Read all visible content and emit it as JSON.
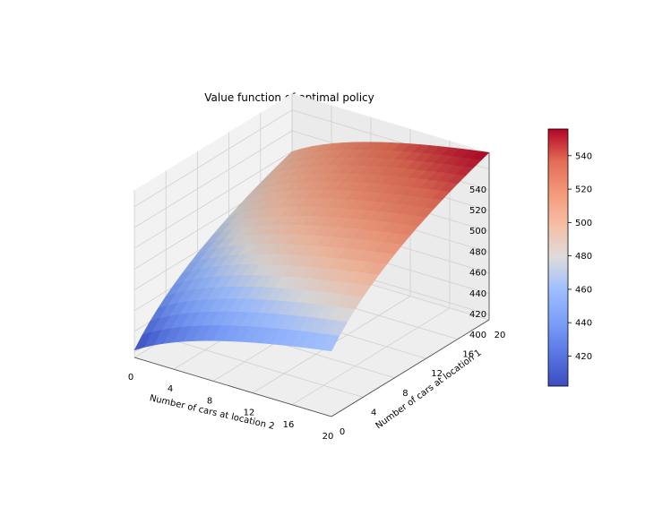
{
  "chart_data": {
    "type": "surface3d",
    "title": "Value function of optimal policy",
    "xlabel": "Number of cars at location 2",
    "ylabel": "Number of cars at location 1",
    "zlabel": "",
    "x_range": [
      0,
      20
    ],
    "y_range": [
      0,
      20
    ],
    "z_range": [
      395,
      556
    ],
    "x_ticks": [
      "0",
      "4",
      "8",
      "12",
      "16",
      "20"
    ],
    "y_ticks": [
      "0",
      "4",
      "8",
      "12",
      "16",
      "20"
    ],
    "z_ticks": [
      "400",
      "420",
      "440",
      "460",
      "480",
      "500",
      "520",
      "540"
    ],
    "corner_values": {
      "loc2_0_loc1_0": 402,
      "loc2_20_loc1_0": 458,
      "loc2_0_loc1_20": 500,
      "loc2_20_loc1_20": 556
    },
    "colormap": "coolwarm",
    "colorbar": {
      "ticks": [
        "420",
        "440",
        "460",
        "480",
        "500",
        "520",
        "540"
      ],
      "min": 402,
      "max": 556
    },
    "grid": true
  }
}
